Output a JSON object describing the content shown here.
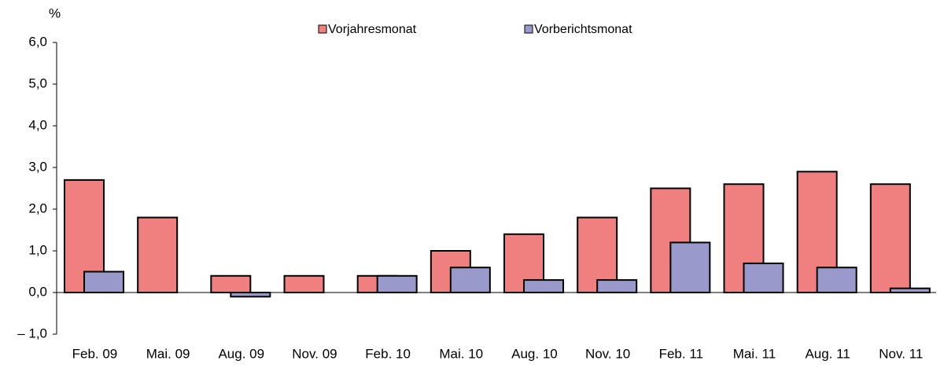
{
  "chart_data": {
    "type": "bar",
    "y_axis_label": "%",
    "categories": [
      "Feb. 09",
      "Mai. 09",
      "Aug. 09",
      "Nov. 09",
      "Feb. 10",
      "Mai. 10",
      "Aug. 10",
      "Nov. 10",
      "Feb. 11",
      "Mai. 11",
      "Aug. 11",
      "Nov. 11"
    ],
    "series": [
      {
        "name": "Vorjahresmonat",
        "color": "#f08080",
        "values": [
          2.7,
          1.8,
          0.4,
          0.4,
          0.4,
          1.0,
          1.4,
          1.8,
          2.5,
          2.6,
          2.9,
          2.6
        ]
      },
      {
        "name": "Vorberichtsmonat",
        "color": "#9999cc",
        "values": [
          0.5,
          0.0,
          -0.1,
          0.0,
          0.4,
          0.6,
          0.3,
          0.3,
          1.2,
          0.7,
          0.6,
          0.1
        ]
      }
    ],
    "ylim": [
      -1,
      6
    ],
    "yticks": [
      {
        "value": -1,
        "label": "– 1,0"
      },
      {
        "value": 0,
        "label": "0,0"
      },
      {
        "value": 1,
        "label": "1,0"
      },
      {
        "value": 2,
        "label": "2,0"
      },
      {
        "value": 3,
        "label": "3,0"
      },
      {
        "value": 4,
        "label": "4,0"
      },
      {
        "value": 5,
        "label": "5,0"
      },
      {
        "value": 6,
        "label": "6,0"
      }
    ],
    "grid": false,
    "legend": "top"
  }
}
